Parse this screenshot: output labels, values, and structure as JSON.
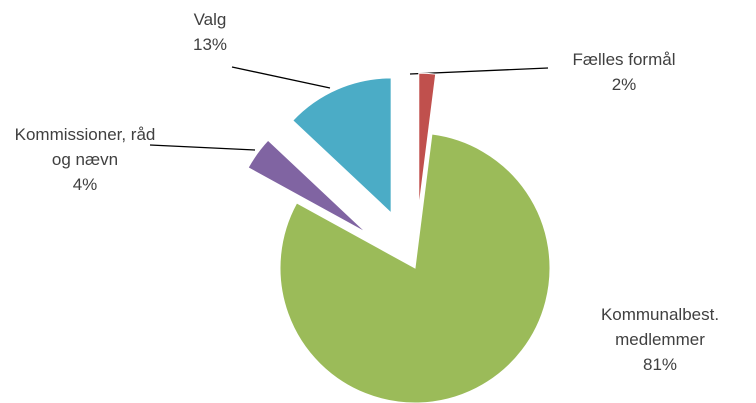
{
  "chart_data": {
    "type": "pie",
    "categories": [
      "Fælles formål",
      "Kommunalbest. medlemmer",
      "Kommissioner, råd og nævn",
      "Valg"
    ],
    "values": [
      2,
      81,
      4,
      13
    ],
    "value_labels": [
      "2%",
      "81%",
      "4%",
      "13%"
    ],
    "colors": [
      "#c0504d",
      "#9bbb59",
      "#8064a2",
      "#4bacc6"
    ],
    "exploded": [
      true,
      false,
      true,
      true
    ]
  }
}
